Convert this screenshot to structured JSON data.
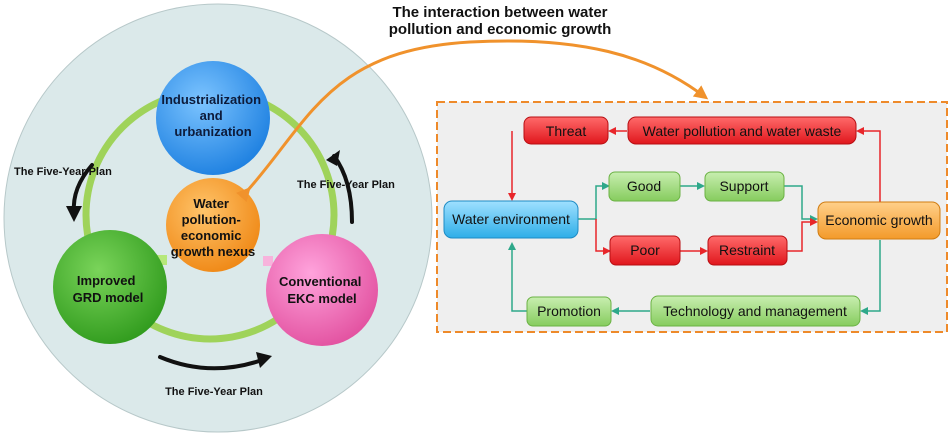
{
  "title": {
    "line1": "The  interaction  between  water",
    "line2": "pollution and economic growth"
  },
  "left_panel": {
    "circles": {
      "top": {
        "lines": [
          "Industrialization",
          "and",
          "urbanization"
        ],
        "color": "#2f8fea"
      },
      "center": {
        "lines": [
          "Water",
          "pollution-",
          "economic",
          "growth nexus"
        ],
        "color": "#f39a25"
      },
      "left": {
        "lines": [
          "Improved",
          "GRD model"
        ],
        "color": "#43b02a"
      },
      "right": {
        "lines": [
          "Conventional",
          "EKC model"
        ],
        "color": "#ee6bc0"
      }
    },
    "plan_labels": {
      "left": "The Five-Year Plan",
      "right": "The Five-Year Plan",
      "bottom": "The Five-Year Plan"
    },
    "ring_color": "#9fd35a",
    "background_color": "#dbe9ea"
  },
  "right_panel": {
    "nodes": {
      "threat": "Threat",
      "water_pollution": "Water pollution and water waste",
      "water_environment": "Water environment",
      "good": "Good",
      "support": "Support",
      "poor": "Poor",
      "restraint": "Restraint",
      "economic_growth": "Economic growth",
      "promotion": "Promotion",
      "technology": "Technology and management"
    },
    "colors": {
      "red": "#f7282c",
      "green": "#8fd16a",
      "blue": "#3fb9ee",
      "orange": "#f6a13a",
      "teal_line": "#2ea88a",
      "border": "#ee8a2a",
      "panel_bg": "#f0f0f0"
    }
  }
}
